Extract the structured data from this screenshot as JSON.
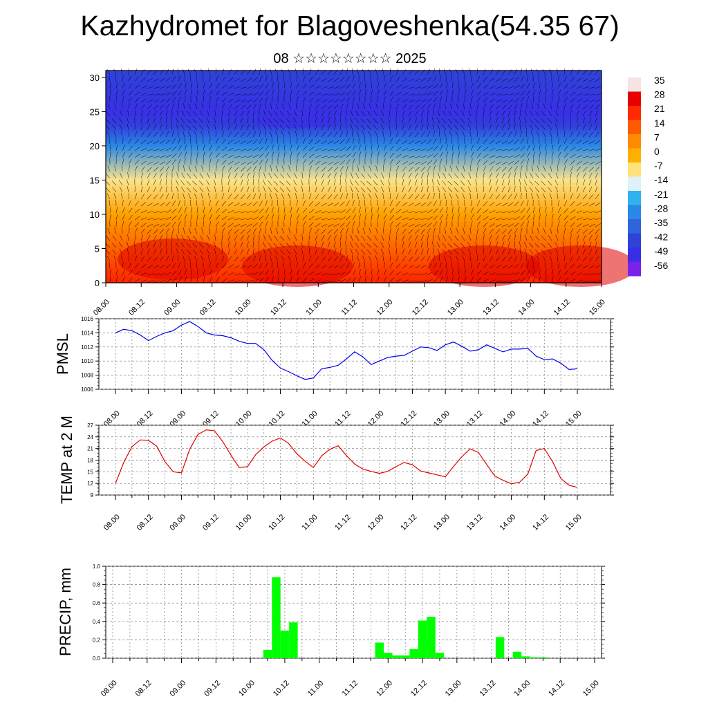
{
  "title": "Kazhydromet for Blagoveshenka(54.35 67)",
  "subtitle": "08 ☆☆☆☆☆☆☆☆ 2025",
  "chart_data": [
    {
      "type": "heatmap",
      "name": "temperature-cross-section",
      "y_ticks": [
        "0",
        "5",
        "10",
        "15",
        "20",
        "25",
        "30"
      ],
      "ylim": [
        0,
        31
      ],
      "x_ticks": [
        "08.00",
        "08.12",
        "09.00",
        "09.12",
        "10.00",
        "10.12",
        "11.00",
        "11.12",
        "12.00",
        "12.12",
        "13.00",
        "13.12",
        "14.00",
        "14.12",
        "15.00"
      ],
      "colorbar_labels": [
        "35",
        "28",
        "21",
        "14",
        "7",
        "0",
        "-7",
        "-14",
        "-21",
        "-28",
        "-35",
        "-42",
        "-49",
        "-56"
      ],
      "colorbar_colors": [
        "#f4e4e4",
        "#e80000",
        "#ff2a00",
        "#ff5a00",
        "#ff8c00",
        "#ffb000",
        "#ffe27a",
        "#dff0f8",
        "#30b2ee",
        "#2a88e6",
        "#2f64dc",
        "#2f43d8",
        "#3a2de8",
        "#7a22e8"
      ],
      "profile_heights": [
        0,
        5,
        10,
        15,
        20,
        23,
        25,
        31
      ],
      "profile_temps": [
        22,
        13,
        3,
        -8,
        -28,
        -44,
        -48,
        -42
      ],
      "grid": false
    },
    {
      "type": "line",
      "ylabel": "PMSL",
      "ylim": [
        1006,
        1016
      ],
      "y_ticks": [
        "1006",
        "1008",
        "1010",
        "1012",
        "1014",
        "1016"
      ],
      "x_ticks": [
        "08.00",
        "08.12",
        "09.00",
        "09.12",
        "10.00",
        "10.12",
        "11.00",
        "11.12",
        "12.00",
        "12.12",
        "13.00",
        "13.12",
        "14.00",
        "14.12",
        "15.00"
      ],
      "color": "#0000ee",
      "grid": true,
      "x": [
        0,
        3,
        6,
        9,
        12,
        15,
        18,
        21,
        24,
        27,
        30,
        33,
        36,
        39,
        42,
        45,
        48,
        51,
        54,
        57,
        60,
        63,
        66,
        69,
        72,
        75,
        78,
        81,
        84,
        87,
        90,
        93,
        96,
        99,
        102,
        105,
        108,
        111,
        114,
        117,
        120,
        123,
        126,
        129,
        132,
        135,
        138,
        141,
        144,
        147,
        150,
        153,
        156,
        159,
        162,
        165,
        168
      ],
      "values": [
        1014.0,
        1014.5,
        1014.3,
        1013.7,
        1012.9,
        1013.5,
        1014.0,
        1014.3,
        1015.1,
        1015.6,
        1014.9,
        1014.0,
        1013.7,
        1013.6,
        1013.3,
        1012.8,
        1012.5,
        1012.5,
        1011.6,
        1010.1,
        1009.0,
        1008.5,
        1007.9,
        1007.4,
        1007.6,
        1008.9,
        1009.1,
        1009.4,
        1010.3,
        1011.3,
        1010.6,
        1009.5,
        1010.0,
        1010.5,
        1010.7,
        1010.8,
        1011.4,
        1012.0,
        1011.9,
        1011.5,
        1012.3,
        1012.7,
        1012.1,
        1011.4,
        1011.6,
        1012.3,
        1011.8,
        1011.3,
        1011.7,
        1011.7,
        1011.8,
        1010.7,
        1010.2,
        1010.3,
        1009.7,
        1008.8,
        1008.9
      ]
    },
    {
      "type": "line",
      "ylabel": "TEMP at 2 M",
      "ylim": [
        9,
        27
      ],
      "y_ticks": [
        "9",
        "12",
        "15",
        "18",
        "21",
        "24",
        "27"
      ],
      "x_ticks": [
        "08.00",
        "08.12",
        "09.00",
        "09.12",
        "10.00",
        "10.12",
        "11.00",
        "11.12",
        "12.00",
        "12.12",
        "13.00",
        "13.12",
        "14.00",
        "14.12",
        "15.00"
      ],
      "color": "#dd0000",
      "grid": true,
      "x": [
        0,
        3,
        6,
        9,
        12,
        15,
        18,
        21,
        24,
        27,
        30,
        33,
        36,
        39,
        42,
        45,
        48,
        51,
        54,
        57,
        60,
        63,
        66,
        69,
        72,
        75,
        78,
        81,
        84,
        87,
        90,
        93,
        96,
        99,
        102,
        105,
        108,
        111,
        114,
        117,
        120,
        123,
        126,
        129,
        132,
        135,
        138,
        141,
        144,
        147,
        150,
        153,
        156,
        159,
        162,
        165,
        168
      ],
      "values": [
        12.0,
        17.4,
        21.5,
        23.2,
        23.1,
        21.6,
        17.6,
        15.0,
        14.7,
        20.8,
        24.6,
        25.8,
        25.6,
        22.8,
        19.3,
        16.1,
        16.3,
        19.4,
        21.4,
        22.9,
        23.7,
        22.3,
        19.6,
        17.7,
        16.1,
        19.1,
        20.8,
        21.7,
        19.2,
        17.0,
        15.7,
        15.1,
        14.6,
        15.1,
        16.3,
        17.4,
        16.8,
        15.2,
        14.7,
        14.2,
        13.7,
        16.4,
        18.9,
        20.9,
        20.0,
        16.9,
        13.9,
        12.8,
        11.9,
        12.3,
        14.4,
        20.5,
        21.0,
        17.6,
        13.3,
        11.5,
        11.0
      ]
    },
    {
      "type": "bar",
      "ylabel": "PRECIP, mm",
      "ylim": [
        0,
        1.0
      ],
      "y_ticks": [
        "0.0",
        "0.2",
        "0.4",
        "0.6",
        "0.8",
        "1.0"
      ],
      "x_ticks": [
        "08.00",
        "08.12",
        "09.00",
        "09.12",
        "10.00",
        "10.12",
        "11.00",
        "11.12",
        "12.00",
        "12.12",
        "13.00",
        "13.12",
        "14.00",
        "14.12",
        "15.00"
      ],
      "color": "#00ff00",
      "grid": true,
      "x": [
        54,
        57,
        60,
        63,
        93,
        96,
        99,
        102,
        105,
        108,
        111,
        114,
        135,
        141,
        144,
        147,
        150
      ],
      "values": [
        0.09,
        0.88,
        0.3,
        0.39,
        0.17,
        0.06,
        0.03,
        0.03,
        0.1,
        0.41,
        0.45,
        0.06,
        0.23,
        0.07,
        0.02,
        0.01,
        0.01
      ]
    }
  ]
}
